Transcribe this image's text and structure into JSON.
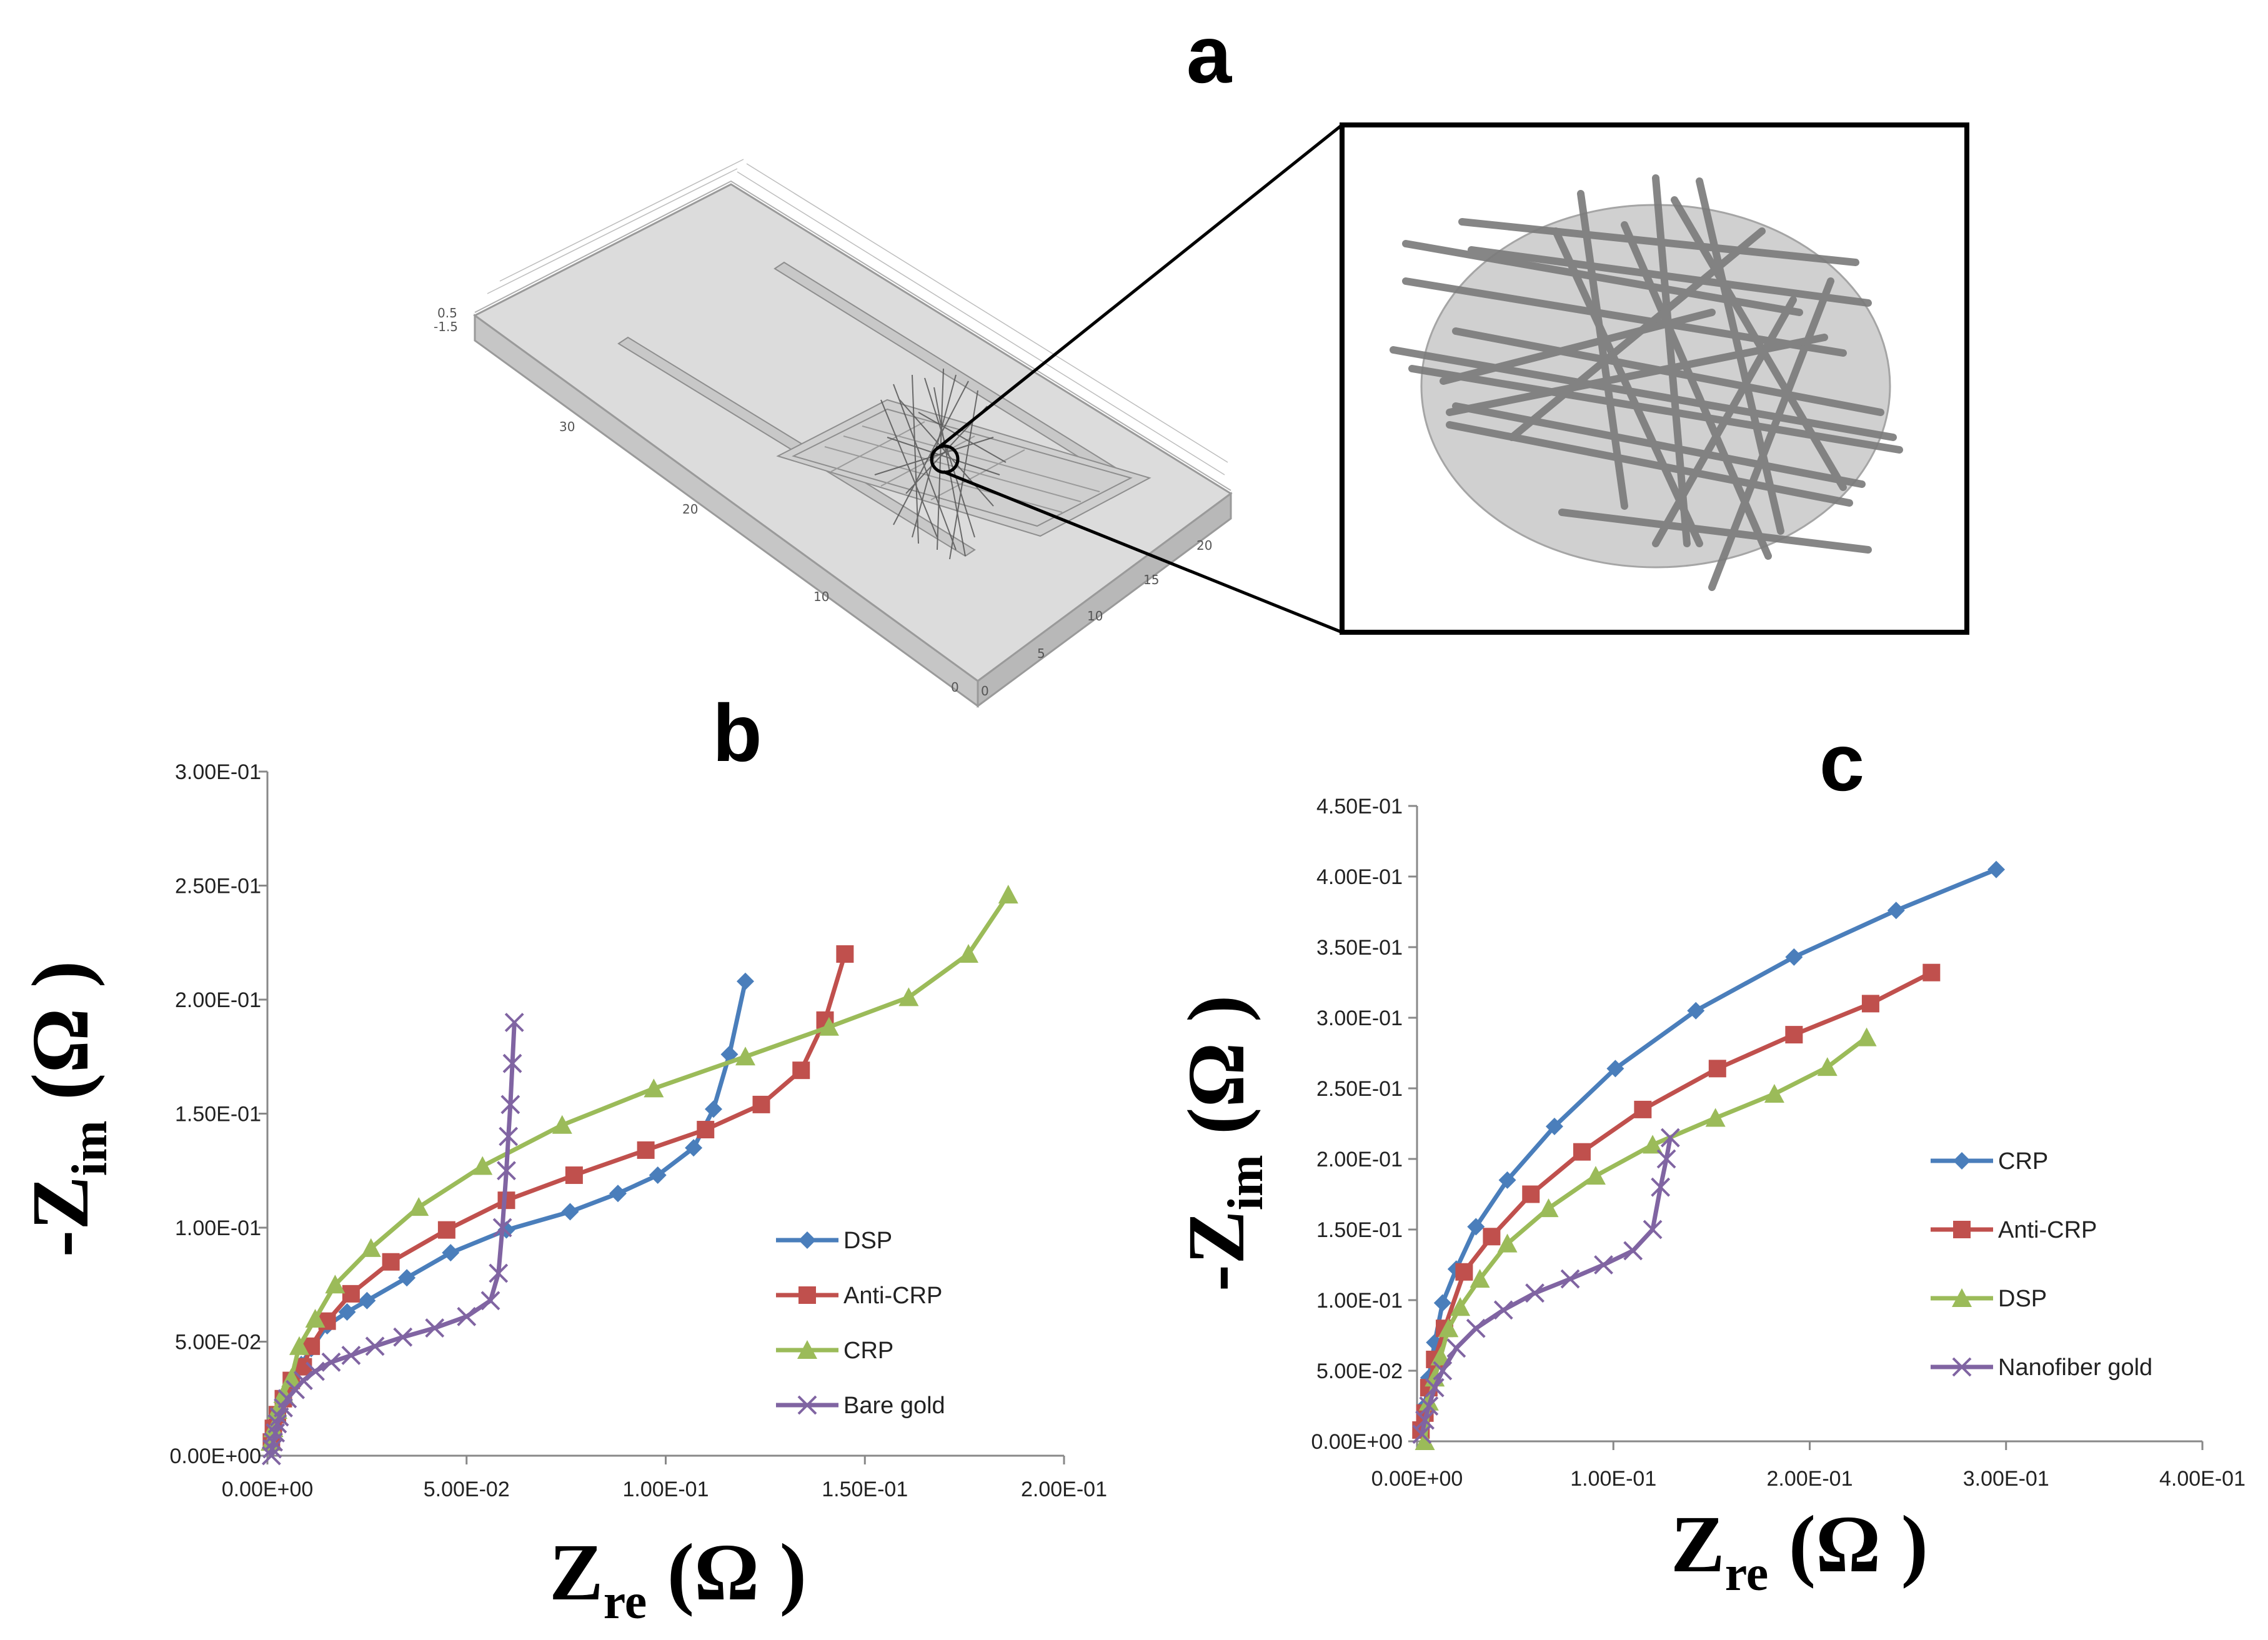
{
  "panels": {
    "a": {
      "label": "a",
      "model_ticks": [
        "0.5",
        "-1.5",
        "30",
        "20",
        "10",
        "0",
        "0",
        "5",
        "10",
        "15",
        "20"
      ]
    },
    "b": {
      "label": "b"
    },
    "c": {
      "label": "c"
    }
  },
  "colors": {
    "blue": "#4a7ebb",
    "red": "#c0504d",
    "green": "#9bbb59",
    "purple": "#8064a2"
  },
  "chart_data": [
    {
      "id": "b",
      "type": "line",
      "title": "b",
      "xlabel": {
        "main": "Z",
        "sub": "re",
        "unit": " (Ω )"
      },
      "ylabel": {
        "main": "-Z",
        "sub": "im",
        "unit": " (Ω )"
      },
      "xlim": [
        0,
        0.2
      ],
      "ylim": [
        0,
        0.3
      ],
      "xticks": [
        "0.00E+00",
        "5.00E-02",
        "1.00E-01",
        "1.50E-01",
        "2.00E-01"
      ],
      "yticks": [
        "0.00E+00",
        "5.00E-02",
        "1.00E-01",
        "1.50E-01",
        "2.00E-01",
        "2.50E-01",
        "3.00E-01"
      ],
      "legend_position": "right",
      "series": [
        {
          "name": "DSP",
          "color": "#4a7ebb",
          "marker": "diamond",
          "x": [
            0.001,
            0.0015,
            0.0025,
            0.004,
            0.006,
            0.0085,
            0.011,
            0.015,
            0.02,
            0.025,
            0.035,
            0.046,
            0.06,
            0.076,
            0.088,
            0.098,
            0.107,
            0.112,
            0.116,
            0.12
          ],
          "y": [
            0.005,
            0.01,
            0.017,
            0.024,
            0.032,
            0.04,
            0.047,
            0.057,
            0.063,
            0.068,
            0.078,
            0.089,
            0.099,
            0.107,
            0.115,
            0.123,
            0.135,
            0.152,
            0.176,
            0.208
          ]
        },
        {
          "name": "Anti-CRP",
          "color": "#c0504d",
          "marker": "square",
          "x": [
            0.001,
            0.0015,
            0.0025,
            0.004,
            0.006,
            0.009,
            0.011,
            0.015,
            0.021,
            0.031,
            0.045,
            0.06,
            0.077,
            0.095,
            0.11,
            0.124,
            0.134,
            0.14,
            0.145
          ],
          "y": [
            0.006,
            0.012,
            0.018,
            0.025,
            0.033,
            0.039,
            0.048,
            0.059,
            0.071,
            0.085,
            0.099,
            0.112,
            0.123,
            0.134,
            0.143,
            0.154,
            0.169,
            0.191,
            0.22
          ]
        },
        {
          "name": "CRP",
          "color": "#9bbb59",
          "marker": "triangle",
          "x": [
            0.0008,
            0.0015,
            0.0025,
            0.004,
            0.006,
            0.008,
            0.012,
            0.017,
            0.026,
            0.038,
            0.054,
            0.074,
            0.097,
            0.12,
            0.141,
            0.161,
            0.176,
            0.186
          ],
          "y": [
            0.006,
            0.012,
            0.02,
            0.027,
            0.034,
            0.048,
            0.06,
            0.075,
            0.091,
            0.109,
            0.127,
            0.145,
            0.161,
            0.175,
            0.188,
            0.201,
            0.22,
            0.246
          ]
        },
        {
          "name": "Bare gold",
          "color": "#8064a2",
          "marker": "x",
          "x": [
            0.001,
            0.0012,
            0.0015,
            0.002,
            0.0025,
            0.003,
            0.004,
            0.005,
            0.007,
            0.009,
            0.012,
            0.016,
            0.021,
            0.027,
            0.034,
            0.042,
            0.05,
            0.056,
            0.058,
            0.059,
            0.06,
            0.0605,
            0.061,
            0.0615,
            0.062
          ],
          "y": [
            0.0,
            0.003,
            0.006,
            0.01,
            0.014,
            0.017,
            0.021,
            0.025,
            0.029,
            0.033,
            0.037,
            0.041,
            0.044,
            0.048,
            0.052,
            0.056,
            0.061,
            0.068,
            0.08,
            0.1,
            0.125,
            0.14,
            0.154,
            0.172,
            0.19
          ]
        }
      ]
    },
    {
      "id": "c",
      "type": "line",
      "title": "c",
      "xlabel": {
        "main": "Z",
        "sub": "re",
        "unit": " (Ω )"
      },
      "ylabel": {
        "main": "-Z",
        "sub": "im",
        "unit": " (Ω )"
      },
      "xlim": [
        0,
        0.4
      ],
      "ylim": [
        0,
        0.45
      ],
      "xticks": [
        "0.00E+00",
        "1.00E-01",
        "2.00E-01",
        "3.00E-01",
        "4.00E-01"
      ],
      "yticks": [
        "0.00E+00",
        "5.00E-02",
        "1.00E-01",
        "1.50E-01",
        "2.00E-01",
        "2.50E-01",
        "3.00E-01",
        "3.50E-01",
        "4.00E-01",
        "4.50E-01"
      ],
      "legend_position": "right",
      "series": [
        {
          "name": "CRP",
          "color": "#4a7ebb",
          "marker": "diamond",
          "x": [
            0.002,
            0.004,
            0.006,
            0.009,
            0.013,
            0.02,
            0.03,
            0.046,
            0.07,
            0.101,
            0.142,
            0.192,
            0.244,
            0.295
          ],
          "y": [
            0.01,
            0.025,
            0.045,
            0.07,
            0.098,
            0.122,
            0.152,
            0.185,
            0.223,
            0.264,
            0.305,
            0.343,
            0.376,
            0.405
          ]
        },
        {
          "name": "Anti-CRP",
          "color": "#c0504d",
          "marker": "square",
          "x": [
            0.002,
            0.004,
            0.006,
            0.009,
            0.014,
            0.024,
            0.038,
            0.058,
            0.084,
            0.115,
            0.153,
            0.192,
            0.231,
            0.262
          ],
          "y": [
            0.008,
            0.02,
            0.038,
            0.058,
            0.08,
            0.12,
            0.145,
            0.175,
            0.205,
            0.235,
            0.264,
            0.288,
            0.31,
            0.332
          ]
        },
        {
          "name": "DSP",
          "color": "#9bbb59",
          "marker": "triangle",
          "x": [
            0.004,
            0.006,
            0.009,
            0.012,
            0.016,
            0.022,
            0.032,
            0.046,
            0.067,
            0.091,
            0.12,
            0.152,
            0.182,
            0.209,
            0.229
          ],
          "y": [
            0.0,
            0.028,
            0.045,
            0.06,
            0.08,
            0.095,
            0.115,
            0.14,
            0.165,
            0.188,
            0.21,
            0.229,
            0.246,
            0.265,
            0.286
          ]
        },
        {
          "name": "Nanofiber gold",
          "color": "#8064a2",
          "marker": "x",
          "x": [
            0.0025,
            0.004,
            0.006,
            0.009,
            0.013,
            0.02,
            0.03,
            0.044,
            0.06,
            0.078,
            0.095,
            0.11,
            0.12,
            0.124,
            0.127,
            0.129
          ],
          "y": [
            0.005,
            0.015,
            0.025,
            0.038,
            0.05,
            0.066,
            0.08,
            0.093,
            0.105,
            0.115,
            0.125,
            0.135,
            0.15,
            0.18,
            0.2,
            0.215
          ]
        }
      ]
    }
  ]
}
